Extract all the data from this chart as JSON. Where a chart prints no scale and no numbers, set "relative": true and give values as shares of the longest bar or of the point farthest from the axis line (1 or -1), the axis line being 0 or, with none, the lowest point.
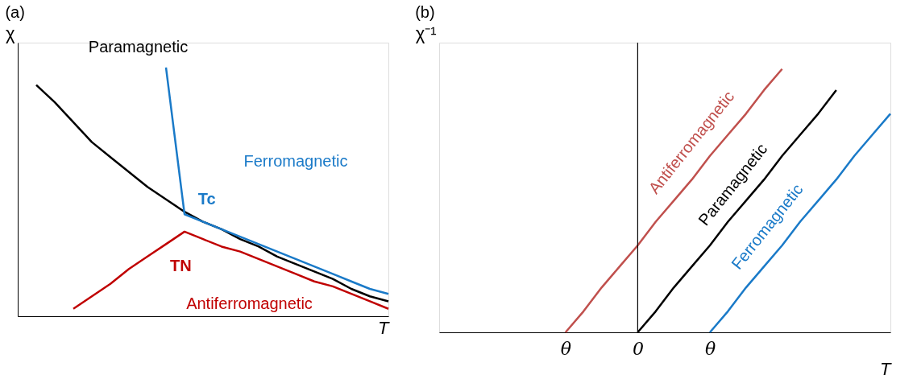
{
  "chart_data": [
    {
      "type": "line",
      "title": "(a)",
      "xlabel": "T",
      "ylabel": "χ",
      "relative": true,
      "tick_labels": false,
      "grid": false,
      "legend": false,
      "marker": "none",
      "line_style": "solid",
      "categories": [
        null,
        null,
        null,
        null,
        null,
        null,
        null,
        null,
        null,
        null,
        null,
        null,
        null,
        null,
        null,
        null,
        null,
        null,
        null,
        null,
        null
      ],
      "series": [
        {
          "name": "Paramagnetic",
          "color": "#000000",
          "values": [
            null,
            0.93,
            0.86,
            0.78,
            0.7,
            0.64,
            0.58,
            0.52,
            0.47,
            0.42,
            0.38,
            0.35,
            0.31,
            0.28,
            0.24,
            0.21,
            0.18,
            0.15,
            0.11,
            0.08,
            0.06
          ]
        },
        {
          "name": "Ferromagnetic",
          "color": "#1a7ac8",
          "values": [
            null,
            null,
            null,
            null,
            null,
            null,
            null,
            null,
            1.0,
            0.41,
            0.38,
            0.35,
            0.32,
            0.29,
            0.26,
            0.23,
            0.2,
            0.17,
            0.14,
            0.11,
            0.09
          ]
        },
        {
          "name": "Antiferromagnetic",
          "color": "#c00000",
          "values": [
            null,
            null,
            null,
            0.03,
            0.08,
            0.13,
            0.19,
            0.24,
            0.29,
            0.34,
            0.31,
            0.28,
            0.26,
            0.23,
            0.2,
            0.17,
            0.14,
            0.12,
            0.09,
            0.06,
            0.03
          ]
        }
      ],
      "annotations": [
        "Tc",
        "TN"
      ]
    },
    {
      "type": "line",
      "title": "(b)",
      "xlabel": "T",
      "ylabel": "χ⁻¹",
      "relative": true,
      "tick_labels": "x",
      "grid": false,
      "legend": false,
      "marker": "none",
      "line_style": "solid",
      "categories": [
        null,
        null,
        null,
        null,
        null,
        null,
        null,
        "θ",
        null,
        null,
        null,
        "0",
        null,
        null,
        null,
        "θ",
        null,
        null,
        null,
        null,
        null,
        null,
        null,
        null,
        null,
        null
      ],
      "ref_lines": [
        {
          "axis": "x",
          "value": "0",
          "color": "#000000"
        }
      ],
      "series": [
        {
          "name": "Antiferromagnetic",
          "color": "#c0504d",
          "values": [
            null,
            null,
            null,
            null,
            null,
            null,
            null,
            0,
            0.08,
            0.17,
            0.25,
            0.33,
            0.42,
            0.5,
            0.58,
            0.67,
            0.75,
            0.83,
            0.92,
            1,
            null,
            null,
            null,
            null,
            null,
            null
          ]
        },
        {
          "name": "Paramagnetic",
          "color": "#000000",
          "values": [
            null,
            null,
            null,
            null,
            null,
            null,
            null,
            null,
            null,
            null,
            null,
            0,
            0.08,
            0.17,
            0.25,
            0.33,
            0.42,
            0.5,
            0.58,
            0.67,
            0.75,
            0.83,
            0.92,
            null,
            null,
            null
          ]
        },
        {
          "name": "Ferromagnetic",
          "color": "#1a7ac8",
          "values": [
            null,
            null,
            null,
            null,
            null,
            null,
            null,
            null,
            null,
            null,
            null,
            null,
            null,
            null,
            null,
            0,
            0.08,
            0.17,
            0.25,
            0.33,
            0.42,
            0.5,
            0.58,
            0.67,
            0.75,
            0.83
          ]
        }
      ]
    }
  ]
}
